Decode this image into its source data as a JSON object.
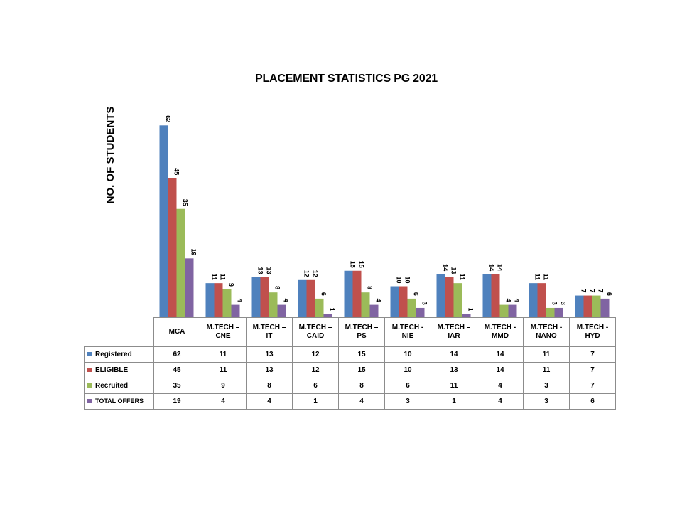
{
  "chart_data": {
    "type": "bar",
    "title": "PLACEMENT STATISTICS PG 2021",
    "xlabel": "",
    "ylabel": "NO. OF STUDENTS",
    "ylim": [
      0,
      70
    ],
    "grid": false,
    "legend": "data-table",
    "categories": [
      {
        "line1": "MCA",
        "line2": ""
      },
      {
        "line1": "M.TECH –",
        "line2": "CNE"
      },
      {
        "line1": "M.TECH –",
        "line2": "IT"
      },
      {
        "line1": "M.TECH –",
        "line2": "CAID"
      },
      {
        "line1": "M.TECH –",
        "line2": "PS"
      },
      {
        "line1": "M.TECH -",
        "line2": "NIE"
      },
      {
        "line1": "M.TECH –",
        "line2": "IAR"
      },
      {
        "line1": "M.TECH -",
        "line2": "MMD"
      },
      {
        "line1": "M.TECH -",
        "line2": "NANO"
      },
      {
        "line1": "M.TECH -",
        "line2": "HYD"
      }
    ],
    "series": [
      {
        "name": "Registered",
        "color": "#4f81bd",
        "values": [
          62,
          11,
          13,
          12,
          15,
          10,
          14,
          14,
          11,
          7
        ]
      },
      {
        "name": "ELIGIBLE",
        "color": "#c0504d",
        "values": [
          45,
          11,
          13,
          12,
          15,
          10,
          13,
          14,
          11,
          7
        ]
      },
      {
        "name": "Recruited",
        "color": "#9bbb59",
        "values": [
          35,
          9,
          8,
          6,
          8,
          6,
          11,
          4,
          3,
          7
        ]
      },
      {
        "name": "TOTAL OFFERS",
        "color": "#8064a2",
        "values": [
          19,
          4,
          4,
          1,
          4,
          3,
          1,
          4,
          3,
          6
        ]
      }
    ]
  }
}
